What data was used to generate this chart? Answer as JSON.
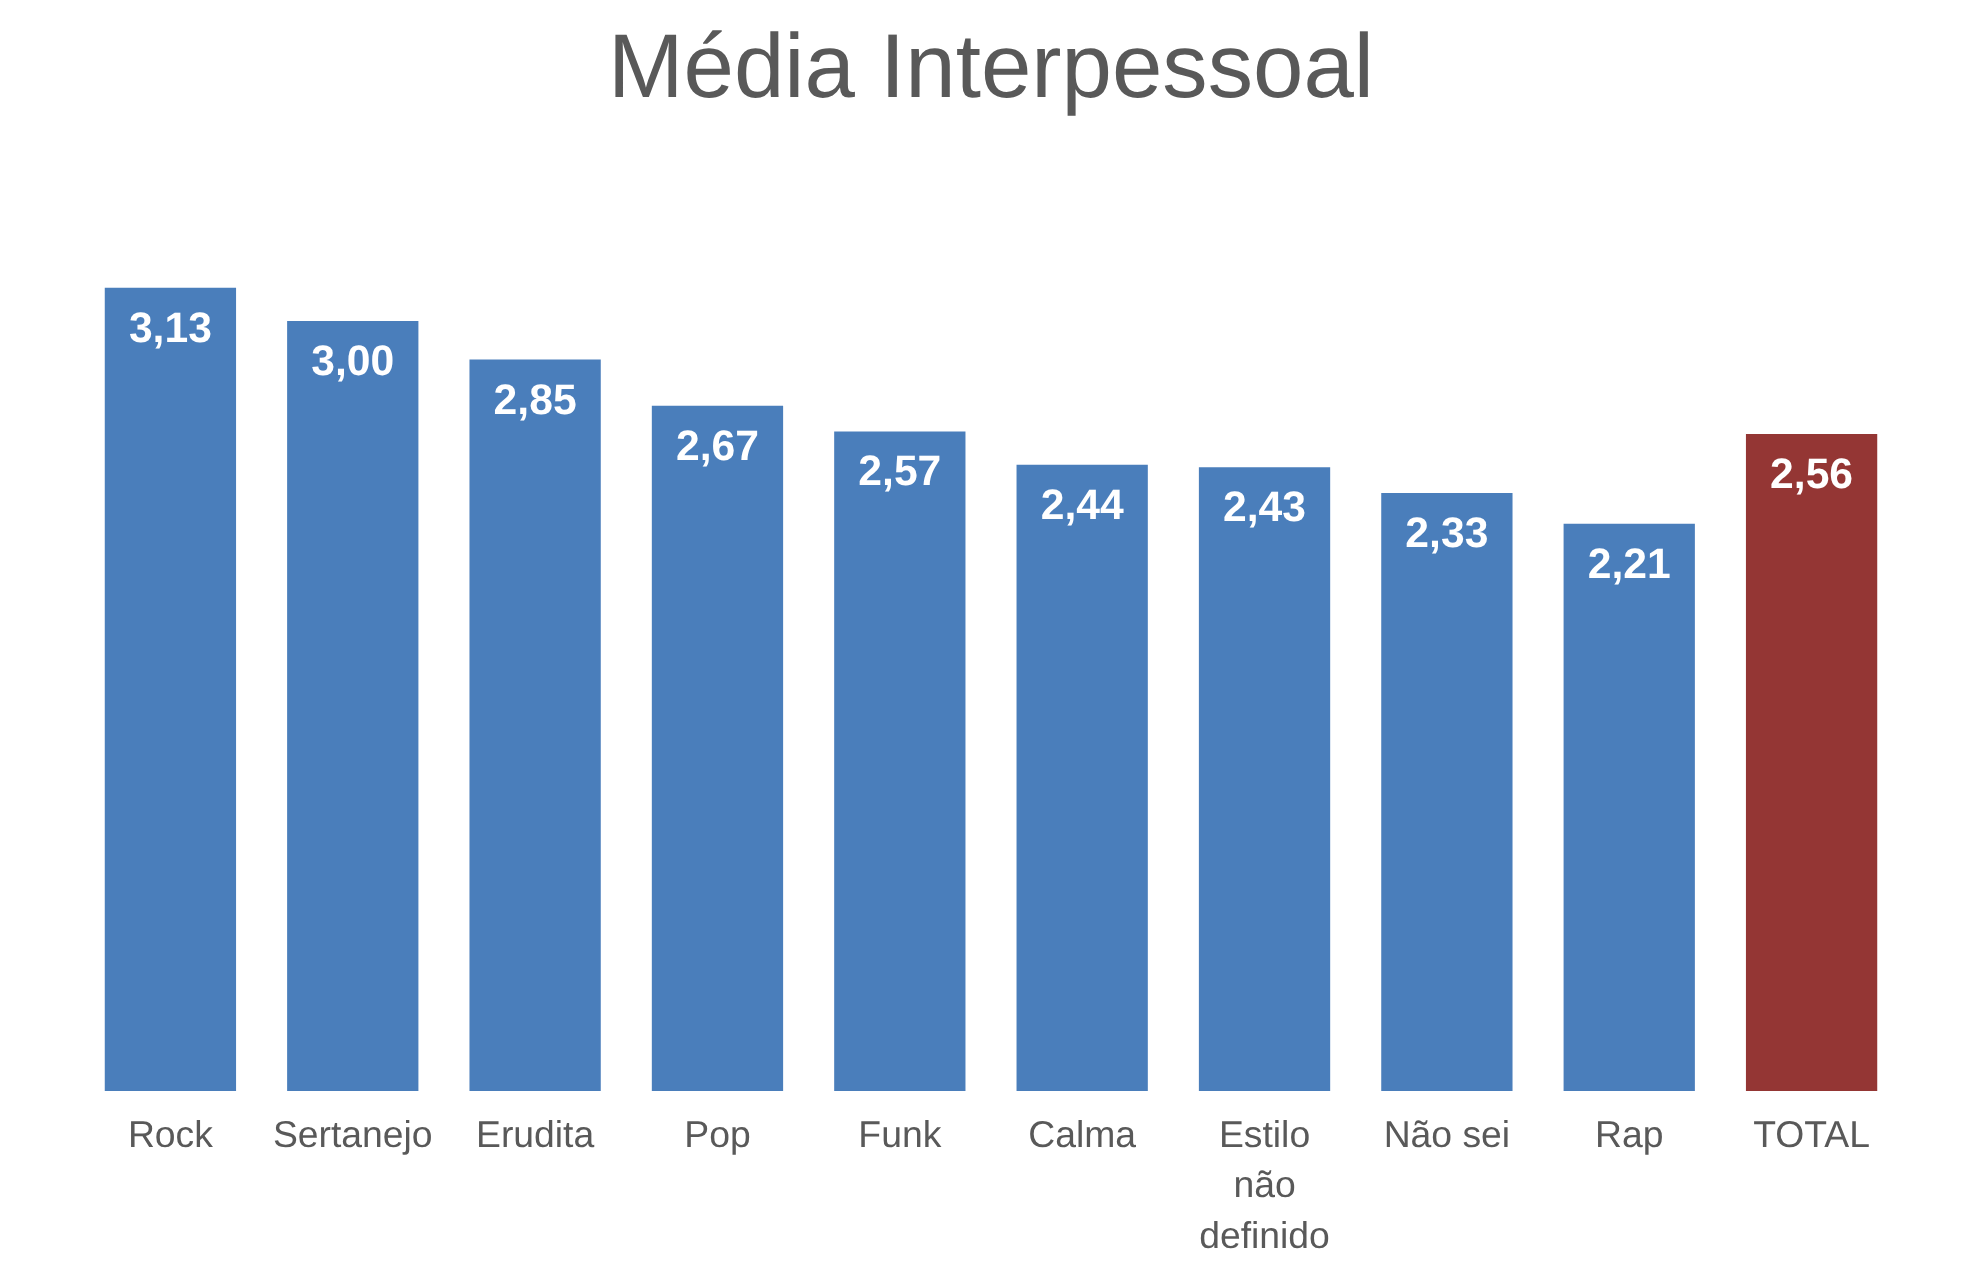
{
  "chart_data": {
    "type": "bar",
    "title": "Média Interpessoal",
    "categories": [
      "Rock",
      "Sertanejo",
      "Erudita",
      "Pop",
      "Funk",
      "Calma",
      "Estilo não definido",
      "Não sei",
      "Rap",
      "TOTAL"
    ],
    "values": [
      3.13,
      3.0,
      2.85,
      2.67,
      2.57,
      2.44,
      2.43,
      2.33,
      2.21,
      2.56
    ],
    "colors": [
      "#4a7ebb",
      "#4a7ebb",
      "#4a7ebb",
      "#4a7ebb",
      "#4a7ebb",
      "#4a7ebb",
      "#4a7ebb",
      "#4a7ebb",
      "#4a7ebb",
      "#943634"
    ],
    "value_labels": [
      "3,13",
      "3,00",
      "2,85",
      "2,67",
      "2,57",
      "2,44",
      "2,43",
      "2,33",
      "2,21",
      "2,56"
    ],
    "grid": false
  }
}
